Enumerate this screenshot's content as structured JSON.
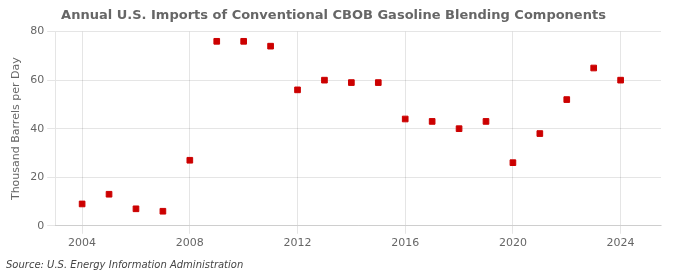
{
  "chart_data": {
    "type": "scatter",
    "title": "Annual U.S. Imports of Conventional CBOB Gasoline Blending Components",
    "ylabel": "Thousand Barrels per Day",
    "annotations": [
      "Source: U.S. Energy Information Administration"
    ],
    "x": [
      2004,
      2005,
      2006,
      2007,
      2008,
      2009,
      2010,
      2011,
      2012,
      2013,
      2014,
      2015,
      2016,
      2017,
      2018,
      2019,
      2020,
      2021,
      2022,
      2023,
      2024
    ],
    "values": [
      9,
      13,
      7,
      6,
      27,
      76,
      76,
      74,
      56,
      60,
      59,
      59,
      44,
      43,
      40,
      43,
      26,
      38,
      52,
      65,
      60
    ],
    "color": "#cc0000",
    "marker": "square",
    "xlim": [
      2003.0,
      2025.5
    ],
    "xticks": [
      2004,
      2008,
      2012,
      2016,
      2020,
      2024
    ],
    "ylim": [
      0,
      80
    ],
    "yticks": [
      0,
      20,
      40,
      60,
      80
    ],
    "grid": true
  }
}
